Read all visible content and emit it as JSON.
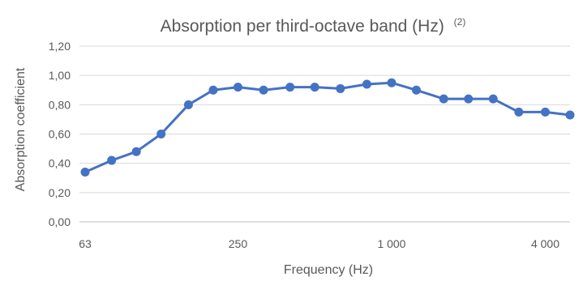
{
  "chart_data": {
    "type": "line",
    "title": "Absorption per third-octave band (Hz)",
    "title_superscript": "(2)",
    "xlabel": "Frequency (Hz)",
    "ylabel": "Absorption coefficient",
    "x_scale": "log",
    "xlim": [
      63,
      5000
    ],
    "ylim": [
      0,
      1.2
    ],
    "y_ticks": [
      "0,00",
      "0,20",
      "0,40",
      "0,60",
      "0,80",
      "1,00",
      "1,20"
    ],
    "x_tick_labels": [
      {
        "value": 63,
        "label": "63"
      },
      {
        "value": 250,
        "label": "250"
      },
      {
        "value": 1000,
        "label": "1 000"
      },
      {
        "value": 4000,
        "label": "4 000"
      }
    ],
    "grid": "horizontal",
    "series_color": "#4472C4",
    "x": [
      63,
      80,
      100,
      125,
      160,
      200,
      250,
      315,
      400,
      500,
      630,
      800,
      1000,
      1250,
      1600,
      2000,
      2500,
      3150,
      4000,
      5000
    ],
    "series": [
      {
        "values": [
          0.34,
          0.42,
          0.48,
          0.6,
          0.8,
          0.9,
          0.92,
          0.9,
          0.92,
          0.92,
          0.91,
          0.94,
          0.95,
          0.9,
          0.84,
          0.84,
          0.84,
          0.75,
          0.75,
          0.73
        ]
      }
    ]
  }
}
